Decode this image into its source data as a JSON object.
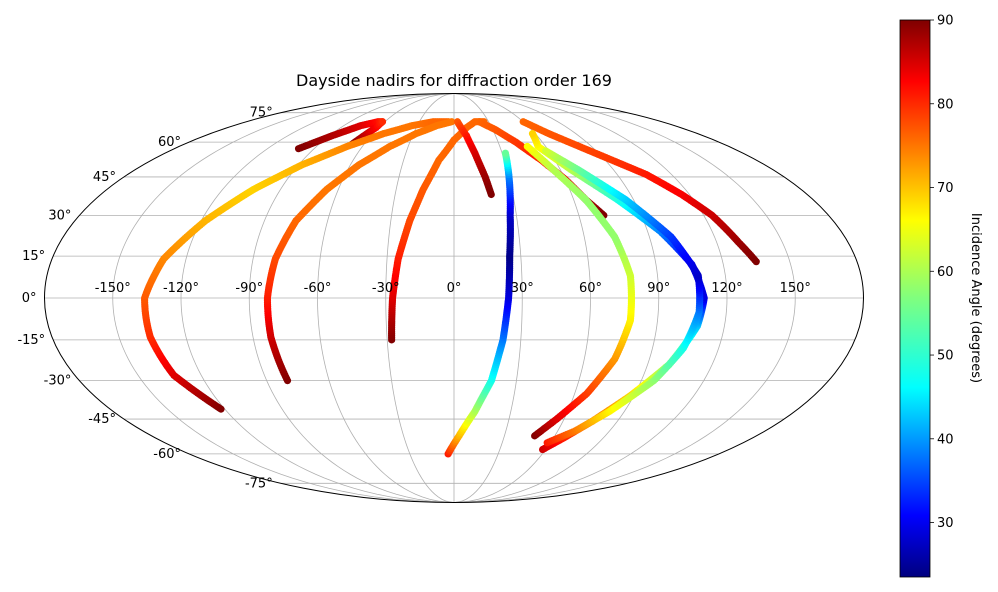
{
  "chart_data": {
    "type": "scatter",
    "projection": "mollweide",
    "title": "Dayside nadirs for diffraction order 169",
    "x_ticks": [
      "-150°",
      "-120°",
      "-90°",
      "-60°",
      "-30°",
      "0°",
      "30°",
      "60°",
      "90°",
      "120°",
      "150°"
    ],
    "y_ticks": [
      "75°",
      "60°",
      "45°",
      "30°",
      "15°",
      "0°",
      "-15°",
      "-30°",
      "-45°",
      "-60°",
      "-75°"
    ],
    "grid": true,
    "xlim": [
      -180,
      180
    ],
    "ylim": [
      -90,
      90
    ],
    "colorbar": {
      "label": "Incidence Angle (degrees)",
      "range": [
        23.5,
        90
      ],
      "ticks": [
        "30",
        "40",
        "50",
        "60",
        "70",
        "80",
        "90"
      ],
      "tick_values": [
        30,
        40,
        50,
        60,
        70,
        80,
        90
      ],
      "colormap": "jet"
    },
    "series": [
      {
        "lon": [
          -100,
          -88,
          -76,
          -66,
          -62
        ],
        "lat": [
          57,
          63,
          68,
          70,
          70
        ],
        "incidence": [
          90,
          87,
          84,
          81,
          79
        ]
      },
      {
        "lon": [
          -68,
          -65,
          -62,
          -62
        ],
        "lat": [
          59,
          63,
          67,
          70
        ],
        "incidence": [
          90,
          86,
          82,
          79
        ]
      },
      {
        "lon": [
          -122,
          -133,
          -136,
          -136,
          -130,
          -118,
          -104,
          -88,
          -70,
          -52,
          -34,
          -18,
          -5
        ],
        "lat": [
          -41,
          -28,
          -14,
          0,
          14,
          28,
          40,
          50,
          58,
          64,
          68,
          70,
          70
        ],
        "incidence": [
          90,
          84,
          79,
          76,
          73,
          70,
          68,
          70,
          73,
          74,
          74,
          75,
          75
        ]
      },
      {
        "lon": [
          -80,
          -82,
          -82,
          -80,
          -75,
          -66,
          -55,
          -42,
          -28,
          -14,
          -2
        ],
        "lat": [
          -30,
          -14,
          0,
          14,
          28,
          40,
          50,
          58,
          64,
          68,
          70
        ],
        "incidence": [
          90,
          85,
          80,
          77,
          75,
          74,
          74,
          74,
          74,
          74,
          74
        ]
      },
      {
        "lon": [
          -28,
          -27,
          -25,
          -21,
          -16,
          -9,
          0,
          10,
          18,
          26
        ],
        "lat": [
          -15,
          0,
          14,
          28,
          40,
          52,
          61,
          67,
          70,
          70
        ],
        "incidence": [
          90,
          84,
          80,
          77,
          76,
          75,
          75,
          75,
          75,
          75
        ]
      },
      {
        "lon": [
          3,
          9,
          13,
          17,
          19
        ],
        "lat": [
          70,
          63,
          55,
          45,
          38
        ],
        "incidence": [
          76,
          80,
          84,
          88,
          90
        ]
      },
      {
        "lon": [
          -4,
          3,
          11,
          18,
          22,
          24,
          25,
          27,
          30,
          32
        ],
        "lat": [
          -60,
          -52,
          -42,
          -30,
          -15,
          0,
          15,
          30,
          45,
          55
        ],
        "incidence": [
          80,
          70,
          60,
          50,
          40,
          30,
          24,
          28,
          40,
          55
        ]
      },
      {
        "lon": [
          22,
          32,
          42,
          52,
          60,
          66,
          72
        ],
        "lat": [
          70,
          66,
          60,
          52,
          44,
          36,
          30
        ],
        "incidence": [
          75,
          76,
          78,
          80,
          83,
          87,
          90
        ]
      },
      {
        "lon": [
          48,
          56,
          66,
          74,
          78,
          78,
          74,
          66,
          56,
          48
        ],
        "lat": [
          -52,
          -45,
          -35,
          -22,
          -8,
          8,
          22,
          36,
          48,
          58
        ],
        "incidence": [
          90,
          84,
          78,
          72,
          66,
          62,
          58,
          58,
          60,
          65
        ]
      },
      {
        "lon": [
          60,
          70,
          82,
          94,
          106,
          116,
          124,
          130,
          135
        ],
        "lat": [
          70,
          64,
          58,
          52,
          46,
          38,
          30,
          20,
          13
        ],
        "incidence": [
          75,
          76,
          77,
          78,
          80,
          82,
          85,
          88,
          90
        ]
      },
      {
        "lon": [
          58,
          66,
          76,
          88,
          100,
          108,
          110,
          106,
          96,
          82,
          66,
          55,
          58
        ],
        "lat": [
          -58,
          -53,
          -46,
          -36,
          -24,
          -10,
          0,
          12,
          24,
          36,
          48,
          58,
          64
        ],
        "incidence": [
          85,
          80,
          75,
          68,
          58,
          45,
          30,
          30,
          40,
          50,
          60,
          65,
          68
        ]
      },
      {
        "lon": [
          58,
          70,
          82,
          96,
          104,
          108,
          108,
          100,
          86,
          70,
          58
        ],
        "lat": [
          -55,
          -50,
          -42,
          -30,
          -18,
          -5,
          8,
          22,
          36,
          48,
          56
        ],
        "incidence": [
          80,
          74,
          66,
          58,
          50,
          40,
          28,
          35,
          45,
          55,
          62
        ]
      }
    ]
  }
}
